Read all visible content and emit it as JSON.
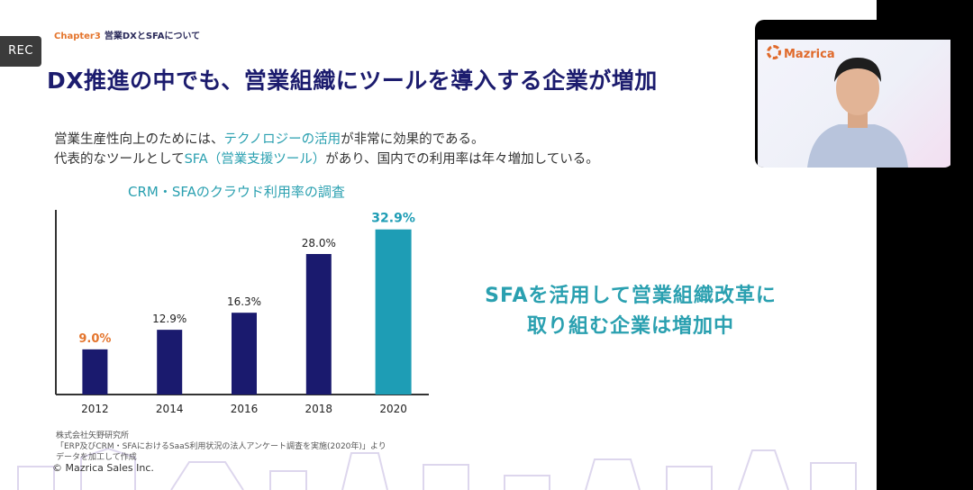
{
  "recording": {
    "label": "REC"
  },
  "slide": {
    "chapter_number": "Chapter3",
    "chapter_title": "営業DXとSFAについて",
    "headline": "DX推進の中でも、営業組織にツールを導入する企業が増加",
    "body": {
      "line1_before": "営業生産性向上のためには、",
      "line1_highlight": "テクノロジーの活用",
      "line1_after": "が非常に効果的である。",
      "line2_before": "代表的なツールとして",
      "line2_highlight": "SFA（営業支援ツール）",
      "line2_after": "があり、国内での利用率は年々増加している。"
    },
    "callout": {
      "line1": "SFAを活用して営業組織改革に",
      "line2": "取り組む企業は増加中"
    },
    "source": {
      "line1": "株式会社矢野研究所",
      "line2": "「ERP及びCRM・SFAにおけるSaaS利用状況の法人アンケート調査を実施(2020年)」より",
      "line3": "データを加工して作成"
    },
    "copyright": "© Mazrica Sales Inc."
  },
  "chart_data": {
    "type": "bar",
    "title": "CRM・SFAのクラウド利用率の調査",
    "categories": [
      "2012",
      "2014",
      "2016",
      "2018",
      "2020"
    ],
    "values": [
      9.0,
      12.9,
      16.3,
      28.0,
      32.9
    ],
    "value_labels": [
      "9.0%",
      "12.9%",
      "16.3%",
      "28.0%",
      "32.9%"
    ],
    "ylim": [
      0,
      35
    ],
    "colors": {
      "bar": "#1a1a6e",
      "highlight_bar": "#1e9db5",
      "low_label": "#e4752d",
      "high_label": "#1e9db5",
      "axis": "#333333"
    },
    "highlight_low_index": 0,
    "highlight_high_index": 4
  },
  "webcam": {
    "logo": "Mazrica"
  }
}
